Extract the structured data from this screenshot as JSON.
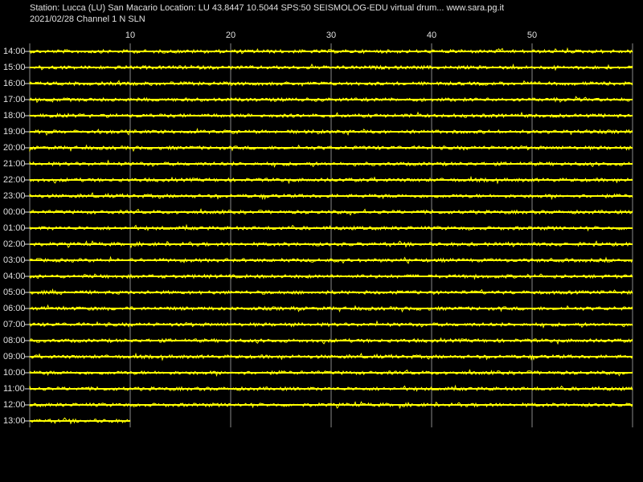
{
  "chart_data": {
    "type": "helicorder",
    "title": "Station: Lucca (LU) San Macario Location: LU 43.8447 10.5044 SPS:50   SEISMOLOG-EDU virtual drum... www.sara.pg.it",
    "subtitle": "2021/02/28  Channel 1 N SLN",
    "categories": [
      "14:00",
      "15:00",
      "16:00",
      "17:00",
      "18:00",
      "19:00",
      "20:00",
      "21:00",
      "22:00",
      "23:00",
      "00:00",
      "01:00",
      "02:00",
      "03:00",
      "04:00",
      "05:00",
      "06:00",
      "07:00",
      "08:00",
      "09:00",
      "10:00",
      "11:00",
      "12:00",
      "13:00"
    ],
    "values": [
      60,
      60,
      60,
      60,
      60,
      60,
      60,
      60,
      60,
      60,
      60,
      60,
      60,
      60,
      60,
      60,
      60,
      60,
      60,
      60,
      60,
      60,
      60,
      10
    ],
    "color": "#ffff00",
    "xlim": [
      0,
      60
    ],
    "xticks": [
      10,
      20,
      30,
      40,
      50
    ],
    "grid": true
  }
}
